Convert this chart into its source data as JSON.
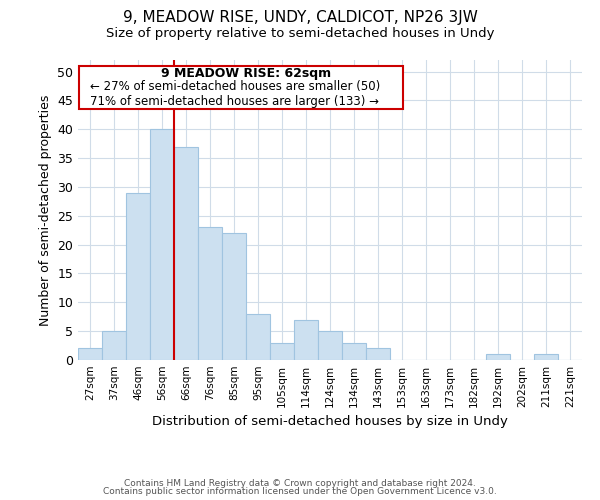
{
  "title": "9, MEADOW RISE, UNDY, CALDICOT, NP26 3JW",
  "subtitle": "Size of property relative to semi-detached houses in Undy",
  "xlabel": "Distribution of semi-detached houses by size in Undy",
  "ylabel": "Number of semi-detached properties",
  "bar_color": "#cce0f0",
  "bar_edge_color": "#a0c4e0",
  "bar_heights": [
    2,
    5,
    29,
    40,
    37,
    23,
    22,
    8,
    3,
    7,
    5,
    3,
    2,
    0,
    0,
    0,
    0,
    1,
    0,
    1,
    0
  ],
  "tick_labels": [
    "27sqm",
    "37sqm",
    "46sqm",
    "56sqm",
    "66sqm",
    "76sqm",
    "85sqm",
    "95sqm",
    "105sqm",
    "114sqm",
    "124sqm",
    "134sqm",
    "143sqm",
    "153sqm",
    "163sqm",
    "173sqm",
    "182sqm",
    "192sqm",
    "202sqm",
    "211sqm",
    "221sqm"
  ],
  "property_sqm": 62,
  "property_line_color": "#cc0000",
  "ylim": [
    0,
    52
  ],
  "yticks": [
    0,
    5,
    10,
    15,
    20,
    25,
    30,
    35,
    40,
    45,
    50
  ],
  "annotation_line1": "9 MEADOW RISE: 62sqm",
  "annotation_line2": "← 27% of semi-detached houses are smaller (50)",
  "annotation_line3": "71% of semi-detached houses are larger (133) →",
  "footer_line1": "Contains HM Land Registry data © Crown copyright and database right 2024.",
  "footer_line2": "Contains public sector information licensed under the Open Government Licence v3.0.",
  "background_color": "#ffffff",
  "grid_color": "#d0dce8"
}
